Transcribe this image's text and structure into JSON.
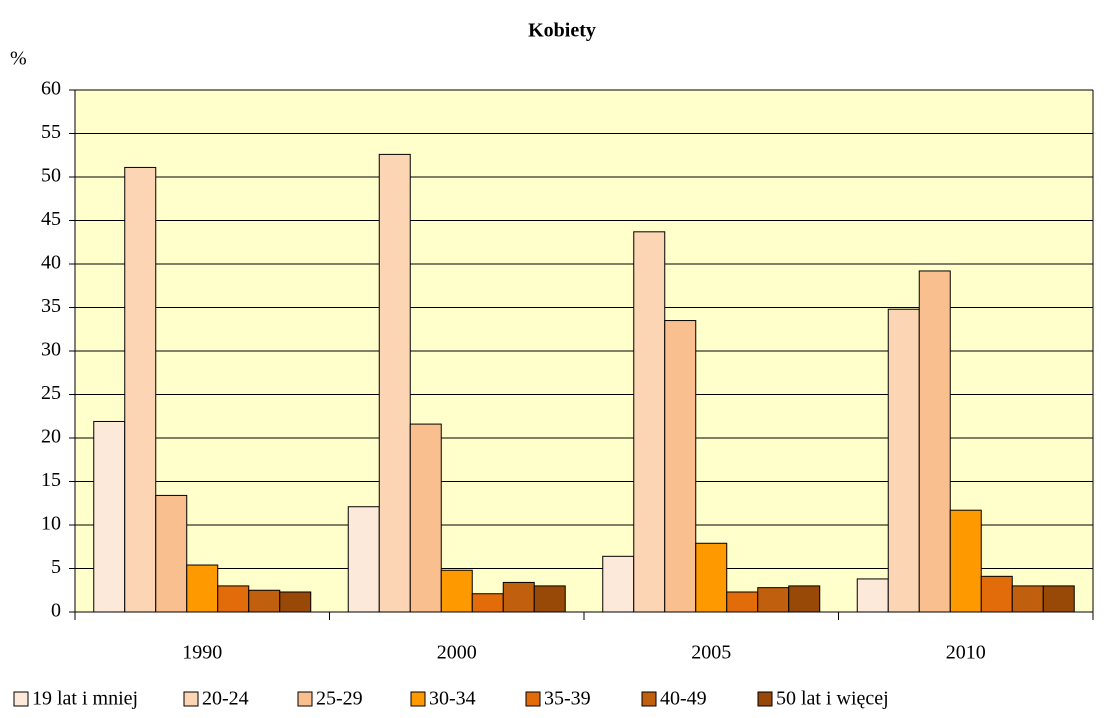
{
  "chart_data": {
    "type": "bar",
    "title": "Kobiety",
    "y_label": "%",
    "categories": [
      "1990",
      "2000",
      "2005",
      "2010"
    ],
    "series": [
      {
        "name": "19 lat i mniej",
        "color": "#fde9d9",
        "values": [
          21.9,
          12.1,
          6.4,
          3.8
        ]
      },
      {
        "name": "20-24",
        "color": "#fcd5b4",
        "values": [
          51.1,
          52.6,
          43.7,
          34.8
        ]
      },
      {
        "name": "25-29",
        "color": "#fabf8f",
        "values": [
          13.4,
          21.6,
          33.5,
          39.2
        ]
      },
      {
        "name": "30-34",
        "color": "#ff9900",
        "values": [
          5.4,
          4.8,
          7.9,
          11.7
        ]
      },
      {
        "name": "35-39",
        "color": "#e26b0a",
        "values": [
          3.0,
          2.1,
          2.3,
          4.1
        ]
      },
      {
        "name": "40-49",
        "color": "#c0600e",
        "values": [
          2.5,
          3.4,
          2.8,
          3.0
        ]
      },
      {
        "name": "50 lat i więcej",
        "color": "#984807",
        "values": [
          2.3,
          3.0,
          3.0,
          3.0
        ]
      }
    ],
    "ylim": [
      0,
      60
    ],
    "yticks": [
      0,
      5,
      10,
      15,
      20,
      25,
      30,
      35,
      40,
      45,
      50,
      55,
      60
    ],
    "grid": true,
    "plot_background": "#ffffcc",
    "legend": "bottom"
  }
}
